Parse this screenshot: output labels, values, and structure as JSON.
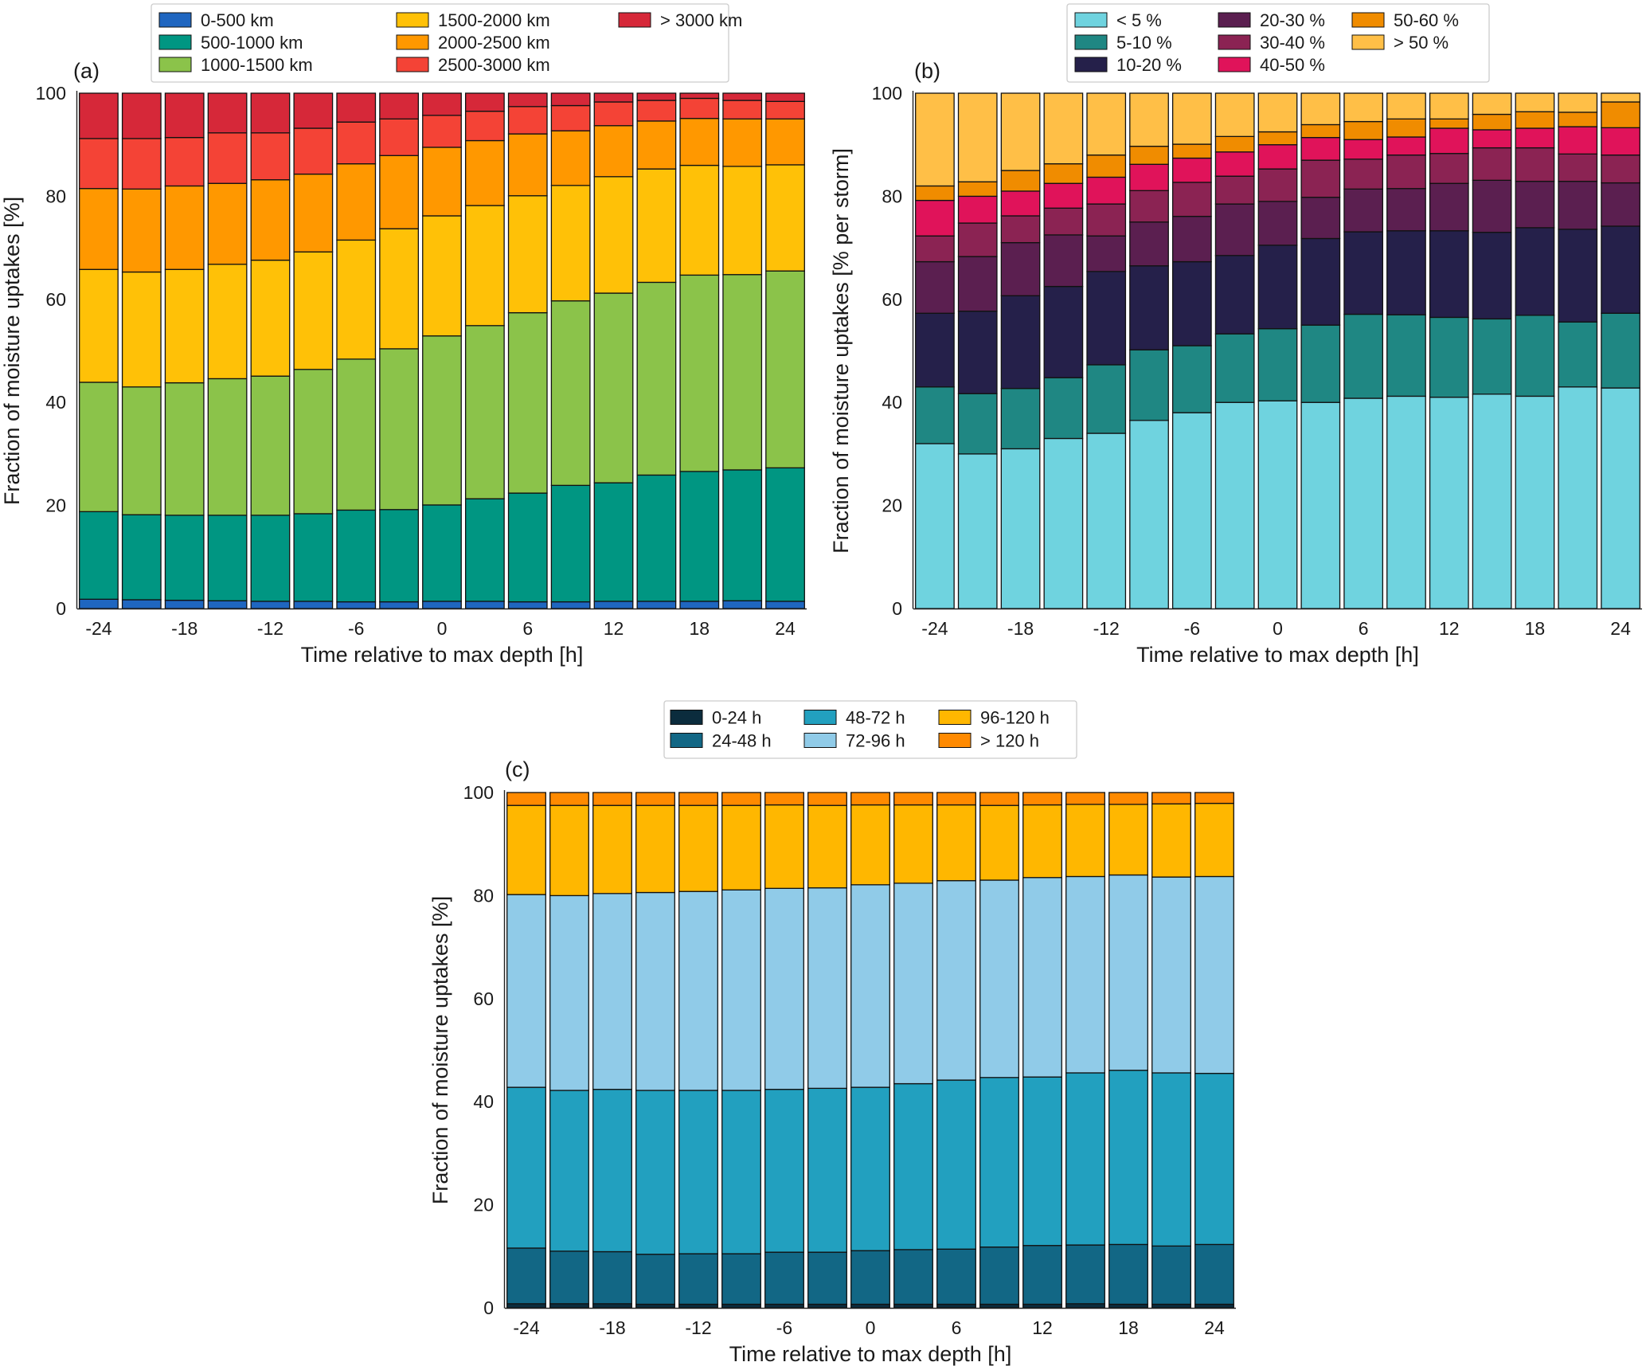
{
  "chart_data": [
    {
      "panel_label": "(a)",
      "type": "bar",
      "stacked": true,
      "xlabel": "Time relative to max depth [h]",
      "ylabel": "Fraction of moisture uptakes [%]",
      "ylim": [
        0,
        100
      ],
      "yticks": [
        0,
        20,
        40,
        60,
        80,
        100
      ],
      "x": [
        -24,
        -21,
        -18,
        -15,
        -12,
        -9,
        -6,
        -3,
        0,
        3,
        6,
        9,
        12,
        15,
        18,
        21,
        24
      ],
      "xticks": [
        -24,
        -18,
        -12,
        -6,
        0,
        6,
        12,
        18,
        24
      ],
      "legend": {
        "position": "top-center",
        "columns": 3,
        "rows": 3
      },
      "series": [
        {
          "name": "0-500 km",
          "color": "#1f66c0",
          "values": [
            1.8,
            1.7,
            1.6,
            1.5,
            1.4,
            1.4,
            1.3,
            1.3,
            1.4,
            1.4,
            1.3,
            1.3,
            1.4,
            1.4,
            1.4,
            1.5,
            1.4
          ]
        },
        {
          "name": "500-1000 km",
          "color": "#009682",
          "values": [
            17,
            16.5,
            16.5,
            16.6,
            16.7,
            17,
            17.8,
            17.9,
            18.7,
            19.9,
            21.1,
            22.6,
            23,
            24.5,
            25.2,
            25.4,
            25.9
          ]
        },
        {
          "name": "1000-1500 km",
          "color": "#8bc34a",
          "values": [
            25.1,
            24.8,
            25.7,
            26.5,
            27,
            28,
            29.3,
            31.2,
            32.8,
            33.6,
            35,
            35.8,
            36.8,
            37.4,
            38.1,
            37.9,
            38.2
          ]
        },
        {
          "name": "1500-2000 km",
          "color": "#ffc107",
          "values": [
            21.9,
            22.3,
            22,
            22.2,
            22.5,
            22.8,
            23.1,
            23.3,
            23.3,
            23.3,
            22.7,
            22.4,
            22.6,
            22,
            21.3,
            21,
            20.6
          ]
        },
        {
          "name": "2000-2500 km",
          "color": "#ff9800",
          "values": [
            15.7,
            16.1,
            16.2,
            15.7,
            15.6,
            15.1,
            14.8,
            14.2,
            13.3,
            12.6,
            12,
            10.6,
            9.9,
            9.3,
            9.1,
            9.2,
            8.9
          ]
        },
        {
          "name": "2500-3000 km",
          "color": "#f44336",
          "values": [
            9.7,
            9.8,
            9.4,
            9.8,
            9.1,
            8.9,
            8.1,
            7.1,
            6.2,
            5.7,
            5.3,
            4.9,
            4.6,
            4,
            3.9,
            3.6,
            3.4
          ]
        },
        {
          "name": "> 3000 km",
          "color": "#d62839",
          "values": [
            8.8,
            8.8,
            8.6,
            7.7,
            7.7,
            6.8,
            5.6,
            5,
            4.3,
            3.5,
            2.6,
            2.4,
            1.7,
            1.4,
            1,
            1.4,
            1.6
          ]
        }
      ]
    },
    {
      "panel_label": "(b)",
      "type": "bar",
      "stacked": true,
      "xlabel": "Time relative to max depth [h]",
      "ylabel": "Fraction of moisture uptakes [% per storm]",
      "ylim": [
        0,
        100
      ],
      "yticks": [
        0,
        20,
        40,
        60,
        80,
        100
      ],
      "x": [
        -24,
        -21,
        -18,
        -15,
        -12,
        -9,
        -6,
        -3,
        0,
        3,
        6,
        9,
        12,
        15,
        18,
        21,
        24
      ],
      "xticks": [
        -24,
        -18,
        -12,
        -6,
        0,
        6,
        12,
        18,
        24
      ],
      "legend": {
        "position": "top-center",
        "columns": 3,
        "rows": 3
      },
      "series": [
        {
          "name": "< 5 %",
          "color": "#6fd3df",
          "values": [
            32,
            30,
            31,
            33,
            34,
            36.5,
            38,
            40,
            40.3,
            40,
            40.8,
            41.2,
            41,
            41.6,
            41.2,
            43,
            42.8
          ]
        },
        {
          "name": "5-10 %",
          "color": "#1f8783",
          "values": [
            11,
            11.7,
            11.7,
            11.8,
            13.3,
            13.7,
            13,
            13.3,
            14,
            15,
            16.3,
            15.8,
            15.5,
            14.6,
            15.7,
            12.6,
            14.5
          ]
        },
        {
          "name": "10-20 %",
          "color": "#25204a",
          "values": [
            14.3,
            16,
            18,
            17.7,
            18.1,
            16.3,
            16.3,
            15.2,
            16.2,
            16.8,
            16,
            16.3,
            16.8,
            16.8,
            17,
            18,
            16.9
          ]
        },
        {
          "name": "20-30 %",
          "color": "#5b1f50",
          "values": [
            10,
            10.6,
            10.3,
            10,
            6.9,
            8.5,
            8.8,
            10,
            8.5,
            8,
            8.3,
            8.2,
            9.2,
            10.1,
            9,
            9.3,
            8.4
          ]
        },
        {
          "name": "30-40 %",
          "color": "#8b2353",
          "values": [
            5,
            6.5,
            5.2,
            5.2,
            6.2,
            6.1,
            6.6,
            5.4,
            6.3,
            7.2,
            5.8,
            6.5,
            5.8,
            6.3,
            6.5,
            5.3,
            5.4
          ]
        },
        {
          "name": "40-50 %",
          "color": "#e0135a",
          "values": [
            6.9,
            5.2,
            4.8,
            4.8,
            5.2,
            5.1,
            4.7,
            4.7,
            4.7,
            4.4,
            3.8,
            3.5,
            4.9,
            3.5,
            3.8,
            5.3,
            5.3
          ]
        },
        {
          "name": "50-60 %",
          "color": "#f08c00",
          "values": [
            2.8,
            2.8,
            4,
            3.8,
            4.3,
            3.5,
            2.7,
            3,
            2.5,
            2.5,
            3.5,
            3.5,
            1.8,
            3,
            3.2,
            2.8,
            5
          ]
        },
        {
          "name": "> 50 %",
          "color": "#ffbf47",
          "values": [
            18,
            17.2,
            15,
            13.7,
            12,
            10.3,
            9.9,
            8.4,
            7.5,
            6.1,
            5.5,
            5,
            5,
            4.1,
            3.6,
            3.7,
            1.7
          ]
        }
      ]
    },
    {
      "panel_label": "(c)",
      "type": "bar",
      "stacked": true,
      "xlabel": "Time relative to max depth [h]",
      "ylabel": "Fraction of moisture uptakes [%]",
      "ylim": [
        0,
        100
      ],
      "yticks": [
        0,
        20,
        40,
        60,
        80,
        100
      ],
      "x": [
        -24,
        -21,
        -18,
        -15,
        -12,
        -9,
        -6,
        -3,
        0,
        3,
        6,
        9,
        12,
        15,
        18,
        21,
        24
      ],
      "xticks": [
        -24,
        -18,
        -12,
        -6,
        0,
        6,
        12,
        18,
        24
      ],
      "legend": {
        "position": "top-center",
        "columns": 3,
        "rows": 2
      },
      "series": [
        {
          "name": "0-24 h",
          "color": "#0b2c3d",
          "values": [
            0.8,
            0.8,
            0.8,
            0.7,
            0.7,
            0.7,
            0.7,
            0.7,
            0.7,
            0.7,
            0.7,
            0.7,
            0.7,
            0.8,
            0.7,
            0.7,
            0.7
          ]
        },
        {
          "name": "24-48 h",
          "color": "#126785",
          "values": [
            10.8,
            10.2,
            10.1,
            9.7,
            9.8,
            9.8,
            10.1,
            10.1,
            10.4,
            10.6,
            10.7,
            11.1,
            11.4,
            11.4,
            11.6,
            11.3,
            11.6
          ]
        },
        {
          "name": "48-72 h",
          "color": "#22a0bf",
          "values": [
            31.2,
            31.2,
            31.5,
            31.8,
            31.7,
            31.7,
            31.6,
            31.8,
            31.7,
            32.2,
            32.8,
            32.9,
            32.7,
            33.4,
            33.8,
            33.6,
            33.2
          ]
        },
        {
          "name": "72-96 h",
          "color": "#90cbe8",
          "values": [
            37.4,
            37.8,
            38,
            38.4,
            38.6,
            38.9,
            39,
            38.9,
            39.3,
            38.9,
            38.7,
            38.3,
            38.7,
            38.1,
            37.9,
            38,
            38.2
          ]
        },
        {
          "name": "96-120 h",
          "color": "#ffb700",
          "values": [
            17.3,
            17.5,
            17.1,
            16.9,
            16.7,
            16.4,
            16.2,
            16,
            15.5,
            15.2,
            14.7,
            14.5,
            14.1,
            14,
            13.7,
            14.2,
            14.2
          ]
        },
        {
          "name": "> 120 h",
          "color": "#ff8a00",
          "values": [
            2.5,
            2.5,
            2.5,
            2.5,
            2.5,
            2.5,
            2.4,
            2.5,
            2.4,
            2.4,
            2.4,
            2.5,
            2.4,
            2.3,
            2.3,
            2.2,
            2.1
          ]
        }
      ]
    }
  ]
}
